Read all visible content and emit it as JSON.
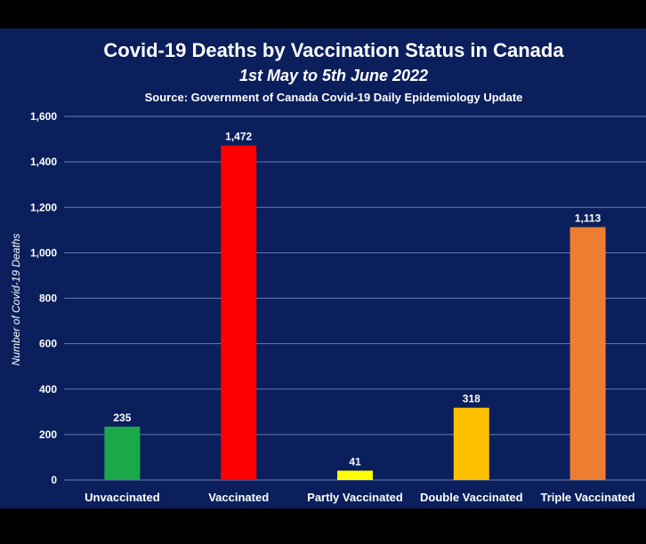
{
  "chart_data": {
    "type": "bar",
    "title": "Covid-19 Deaths by Vaccination Status in Canada",
    "subtitle": "1st May to 5th June 2022",
    "source": "Source: Government of Canada Covid-19 Daily Epidemiology Update",
    "xlabel": "",
    "ylabel": "Number of Covid-19 Deaths",
    "categories": [
      "Unvaccinated",
      "Vaccinated",
      "Partly Vaccinated",
      "Double Vaccinated",
      "Triple Vaccinated"
    ],
    "values": [
      235,
      1472,
      41,
      318,
      1113
    ],
    "value_labels": [
      "235",
      "1,472",
      "41",
      "318",
      "1,113"
    ],
    "bar_colors": [
      "#1aa84b",
      "#ff0000",
      "#ffff00",
      "#ffc000",
      "#ed7d31"
    ],
    "ylim": [
      0,
      1600
    ],
    "yticks": [
      0,
      200,
      400,
      600,
      800,
      1000,
      1200,
      1400,
      1600
    ],
    "ytick_labels": [
      "0",
      "200",
      "400",
      "600",
      "800",
      "1,000",
      "1,200",
      "1,400",
      "1,600"
    ],
    "grid": true,
    "legend": "none",
    "colors": {
      "background": "#0a1f5c",
      "text": "#ffffff",
      "grid": "#6b7bb0"
    }
  }
}
